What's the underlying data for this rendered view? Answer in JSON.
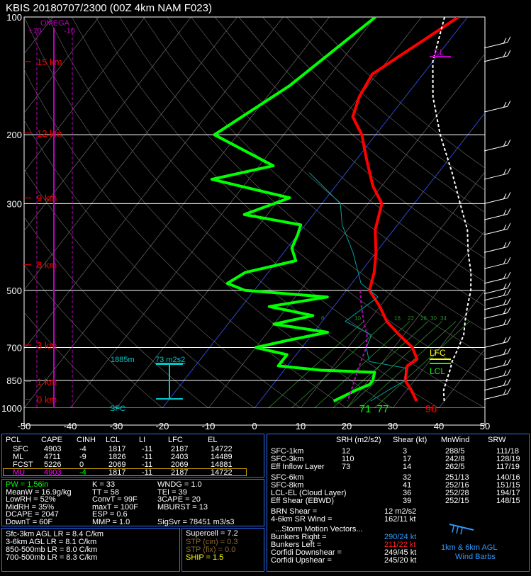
{
  "header": {
    "title": "KBIS   20180707/2300   (00Z  4km NAM  F023)"
  },
  "colors": {
    "temperature": "#ff0000",
    "dewpoint": "#00ff00",
    "virtual_temp": "#00a0a0",
    "parcel": "#ffffff",
    "omega": "#c000c0",
    "grid": "#ffffff",
    "mixing_ratio": "#2a8a2a",
    "isotherm": "#2040ff"
  },
  "chart_data": {
    "type": "line",
    "title": "KBIS   20180707/2300   (00Z  4km NAM  F023)",
    "x_axis": {
      "label": "",
      "ticks": [
        "-50",
        "-40",
        "-30",
        "-20",
        "-10",
        "0",
        "10",
        "20",
        "30",
        "40",
        "50"
      ],
      "range": [
        -50,
        50
      ],
      "units": "C"
    },
    "y_axis": {
      "ticks": [
        "100",
        "200",
        "300",
        "500",
        "700",
        "850",
        "1000"
      ],
      "scale": "log",
      "units": "mb"
    },
    "height_labels": [
      "15 km",
      "12 km",
      "9 km",
      "6 km",
      "3 km",
      "1 km",
      "0 km"
    ],
    "height_pressures": [
      130,
      198,
      290,
      430,
      690,
      855,
      950
    ],
    "omega": {
      "label": "OMEGA",
      "ticks": [
        "+10",
        "-10"
      ]
    },
    "series": [
      {
        "name": "Temperature",
        "color": "#ff0000",
        "points": [
          [
            -22,
            100
          ],
          [
            -25,
            112
          ],
          [
            -28,
            125
          ],
          [
            -31,
            140
          ],
          [
            -30,
            160
          ],
          [
            -28,
            180
          ],
          [
            -23,
            200
          ],
          [
            -18,
            230
          ],
          [
            -12,
            270
          ],
          [
            -7,
            300
          ],
          [
            -4,
            350
          ],
          [
            0,
            400
          ],
          [
            3,
            450
          ],
          [
            5,
            500
          ],
          [
            10,
            550
          ],
          [
            14,
            600
          ],
          [
            19,
            650
          ],
          [
            24,
            700
          ],
          [
            27,
            750
          ],
          [
            26,
            780
          ],
          [
            28,
            850
          ],
          [
            31,
            900
          ],
          [
            34,
            960
          ]
        ]
      },
      {
        "name": "Dewpoint",
        "color": "#00ff00",
        "points": [
          [
            -40,
            100
          ],
          [
            -47,
            150
          ],
          [
            -55,
            200
          ],
          [
            -37,
            240
          ],
          [
            -48,
            260
          ],
          [
            -28,
            290
          ],
          [
            -35,
            320
          ],
          [
            -21,
            340
          ],
          [
            -20,
            360
          ],
          [
            -19,
            390
          ],
          [
            -16,
            420
          ],
          [
            -25,
            450
          ],
          [
            -27,
            480
          ],
          [
            -22,
            500
          ],
          [
            -3,
            520
          ],
          [
            -14,
            550
          ],
          [
            -3,
            580
          ],
          [
            -10,
            610
          ],
          [
            3,
            640
          ],
          [
            -4,
            670
          ],
          [
            -10,
            700
          ],
          [
            -2,
            730
          ],
          [
            -2,
            780
          ],
          [
            8,
            800
          ],
          [
            20,
            810
          ],
          [
            21,
            850
          ],
          [
            21,
            870
          ],
          [
            19,
            900
          ],
          [
            16,
            960
          ]
        ]
      },
      {
        "name": "Virtual Temperature",
        "color": "#00a0a0",
        "points": [
          [
            -28,
            250
          ],
          [
            -16,
            300
          ],
          [
            -12,
            340
          ],
          [
            -5,
            400
          ],
          [
            2,
            480
          ],
          [
            8,
            520
          ],
          [
            5,
            600
          ],
          [
            13,
            650
          ],
          [
            14,
            700
          ],
          [
            17,
            760
          ],
          [
            26,
            790
          ],
          [
            28,
            850
          ],
          [
            26,
            900
          ],
          [
            24,
            960
          ]
        ]
      },
      {
        "name": "Parcel",
        "color": "#ffffff",
        "points": [
          [
            -25,
            100
          ],
          [
            -20,
            130
          ],
          [
            -14,
            160
          ],
          [
            -6,
            200
          ],
          [
            3,
            250
          ],
          [
            10,
            300
          ],
          [
            16,
            350
          ],
          [
            20,
            400
          ],
          [
            24,
            450
          ],
          [
            27,
            500
          ],
          [
            29,
            550
          ],
          [
            31,
            600
          ],
          [
            33,
            650
          ],
          [
            34,
            700
          ],
          [
            35,
            760
          ],
          [
            36,
            800
          ],
          [
            37,
            850
          ],
          [
            38,
            900
          ],
          [
            40,
            960
          ]
        ]
      },
      {
        "name": "Downdraft",
        "color": "#c000c0",
        "points": [
          [
            3,
            500
          ],
          [
            6,
            550
          ],
          [
            9,
            600
          ],
          [
            12,
            650
          ],
          [
            14,
            700
          ],
          [
            15,
            750
          ],
          [
            16,
            800
          ],
          [
            17,
            850
          ],
          [
            18,
            900
          ],
          [
            19,
            960
          ]
        ]
      }
    ],
    "annotations": {
      "surface_values": [
        "71",
        "77",
        "96"
      ],
      "EL": "EL",
      "LFC": "LFC",
      "LCL": "LCL",
      "srh_layer": {
        "depth": "1885m",
        "value": "73 m2s2"
      },
      "sfc": "SFC",
      "mixing_ratio_labels": [
        "6",
        "10",
        "16",
        "22",
        "26",
        "30",
        "34"
      ]
    }
  },
  "parcel_table": {
    "headers": [
      "PCL",
      "CAPE",
      "CINH",
      "LCL",
      "LI",
      "LFC",
      "EL"
    ],
    "rows": [
      [
        "SFC",
        "4903",
        "-4",
        "1817",
        "-11",
        "2187",
        "14722"
      ],
      [
        "ML",
        "4711",
        "-9",
        "1826",
        "-11",
        "2403",
        "14489"
      ],
      [
        "FCST",
        "5226",
        "0",
        "2069",
        "-11",
        "2069",
        "14881"
      ],
      [
        "MU",
        "4903",
        "-4",
        "1817",
        "-11",
        "2187",
        "14722"
      ]
    ]
  },
  "indices": {
    "col1": [
      "PW = 1.56in",
      "MeanW = 16.9g/kg",
      "LowRH = 52%",
      "MidRH = 35%",
      "DCAPE = 2047",
      "DownT = 60F"
    ],
    "col2": [
      "K = 33",
      "TT = 58",
      "ConvT = 99F",
      "maxT = 100F",
      "ESP = 0.6",
      "MMP = 1.0"
    ],
    "col3": [
      "WNDG = 1.0",
      "TEI = 39",
      "3CAPE = 20",
      "MBURST = 13",
      "",
      "SigSvr = 78451 m3/s3"
    ]
  },
  "lapse_rates": [
    "Sfc-3km AGL LR = 8.4 C/km",
    "3-6km AGL LR = 8.1 C/km",
    "850-500mb LR = 8.0 C/km",
    "700-500mb LR = 8.3 C/km"
  ],
  "composite": {
    "supercell": "Supercell = 7.2",
    "stp_cin": "STP (cin) = 0.3",
    "stp_fix": "STP (fix) = 0.0",
    "ship": "SHIP = 1.5"
  },
  "kinematics": {
    "headers": [
      "SRH (m2/s2)",
      "Shear (kt)",
      "MnWind",
      "SRW"
    ],
    "rows": [
      [
        "SFC-1km",
        "12",
        "3",
        "288/5",
        "111/18"
      ],
      [
        "SFC-3km",
        "110",
        "17",
        "242/8",
        "128/19"
      ],
      [
        "Eff Inflow Layer",
        "73",
        "14",
        "262/5",
        "117/19"
      ],
      [
        "SFC-6km",
        "",
        "32",
        "251/13",
        "140/16"
      ],
      [
        "SFC-8km",
        "",
        "41",
        "252/16",
        "151/15"
      ],
      [
        "LCL-EL (Cloud Layer)",
        "",
        "36",
        "252/28",
        "194/17"
      ],
      [
        "Eff Shear (EBWD)",
        "",
        "39",
        "252/15",
        "148/15"
      ]
    ],
    "brn_shear": {
      "label": "BRN Shear =",
      "value": "12 m2/s2"
    },
    "sr_wind": {
      "label": "4-6km SR Wind =",
      "value": "162/11 kt"
    },
    "storm_motion_title": "...Storm Motion Vectors...",
    "bunkers_right": {
      "label": "Bunkers Right =",
      "value": "290/24 kt"
    },
    "bunkers_left": {
      "label": "Bunkers Left =",
      "value": "211/22 kt"
    },
    "corfidi_down": {
      "label": "Corfidi Downshear =",
      "value": "249/45 kt"
    },
    "corfidi_up": {
      "label": "Corfidi Upshear =",
      "value": "245/20 kt"
    },
    "wind_barb_legend": [
      "1km & 6km AGL",
      "Wind Barbs"
    ]
  }
}
